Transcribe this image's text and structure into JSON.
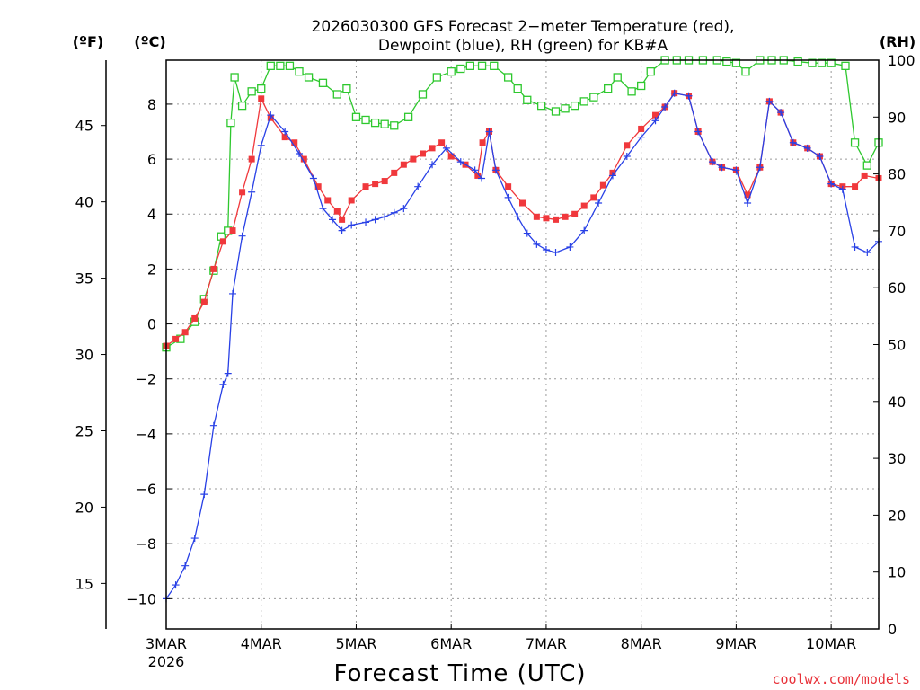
{
  "chart_data": {
    "type": "line",
    "title_line1": "2026030300 GFS Forecast 2−meter Temperature (red),",
    "title_line2": "Dewpoint (blue), RH (green) for KB#A",
    "xlabel": "Forecast Time (UTC)",
    "credit": "coolwx.com/models",
    "units": {
      "fahrenheit": "(ºF)",
      "celsius": "(ºC)",
      "rh": "(RH)"
    },
    "xlim_days": [
      0,
      7.5
    ],
    "x_ticks": [
      {
        "day": 0,
        "label": "3MAR",
        "label2": "2026"
      },
      {
        "day": 1,
        "label": "4MAR",
        "label2": ""
      },
      {
        "day": 2,
        "label": "5MAR",
        "label2": ""
      },
      {
        "day": 3,
        "label": "6MAR",
        "label2": ""
      },
      {
        "day": 4,
        "label": "7MAR",
        "label2": ""
      },
      {
        "day": 5,
        "label": "8MAR",
        "label2": ""
      },
      {
        "day": 6,
        "label": "9MAR",
        "label2": ""
      },
      {
        "day": 7,
        "label": "10MAR",
        "label2": ""
      }
    ],
    "celsius_axis": {
      "ylim": [
        -11.1,
        9.6
      ],
      "ticks": [
        {
          "v": -10,
          "label": "−10"
        },
        {
          "v": -8,
          "label": "−8"
        },
        {
          "v": -6,
          "label": "−6"
        },
        {
          "v": -4,
          "label": "−4"
        },
        {
          "v": -2,
          "label": "−2"
        },
        {
          "v": 0,
          "label": "0"
        },
        {
          "v": 2,
          "label": "2"
        },
        {
          "v": 4,
          "label": "4"
        },
        {
          "v": 6,
          "label": "6"
        },
        {
          "v": 8,
          "label": "8"
        }
      ]
    },
    "fahrenheit_axis": {
      "ticks": [
        {
          "v": 15,
          "label": "15"
        },
        {
          "v": 20,
          "label": "20"
        },
        {
          "v": 25,
          "label": "25"
        },
        {
          "v": 30,
          "label": "30"
        },
        {
          "v": 35,
          "label": "35"
        },
        {
          "v": 40,
          "label": "40"
        },
        {
          "v": 45,
          "label": "45"
        }
      ]
    },
    "rh_axis": {
      "ylim": [
        0,
        100
      ],
      "ticks": [
        {
          "v": 0,
          "label": "0"
        },
        {
          "v": 10,
          "label": "10"
        },
        {
          "v": 20,
          "label": "20"
        },
        {
          "v": 30,
          "label": "30"
        },
        {
          "v": 40,
          "label": "40"
        },
        {
          "v": 50,
          "label": "50"
        },
        {
          "v": 60,
          "label": "60"
        },
        {
          "v": 70,
          "label": "70"
        },
        {
          "v": 80,
          "label": "80"
        },
        {
          "v": 90,
          "label": "90"
        },
        {
          "v": 100,
          "label": "100"
        }
      ]
    },
    "series": [
      {
        "name": "Temperature",
        "unit": "C",
        "color": "#f0383c",
        "marker": "filled-square",
        "points": [
          [
            0.0,
            -0.8
          ],
          [
            0.2,
            -0.3
          ],
          [
            0.3,
            0.2
          ],
          [
            0.4,
            0.8
          ],
          [
            0.5,
            2.0
          ],
          [
            0.6,
            3.0
          ],
          [
            0.7,
            3.4
          ],
          [
            0.8,
            4.8
          ],
          [
            0.9,
            6.0
          ],
          [
            1.0,
            8.2
          ],
          [
            1.1,
            7.5
          ],
          [
            1.25,
            6.8
          ],
          [
            1.35,
            6.6
          ],
          [
            1.45,
            6.0
          ],
          [
            1.6,
            5.0
          ],
          [
            1.7,
            4.5
          ],
          [
            1.8,
            4.1
          ],
          [
            1.85,
            3.8
          ],
          [
            1.95,
            4.5
          ],
          [
            2.1,
            5.0
          ],
          [
            2.3,
            5.2
          ],
          [
            2.5,
            5.8
          ],
          [
            2.7,
            6.2
          ],
          [
            2.9,
            6.6
          ],
          [
            3.0,
            6.1
          ],
          [
            3.15,
            5.8
          ],
          [
            3.28,
            5.4
          ],
          [
            3.33,
            6.6
          ],
          [
            3.4,
            7.0
          ],
          [
            3.47,
            5.6
          ],
          [
            3.6,
            5.0
          ],
          [
            3.75,
            4.4
          ],
          [
            3.9,
            3.9
          ],
          [
            4.1,
            3.8
          ],
          [
            4.3,
            4.0
          ],
          [
            4.5,
            4.6
          ],
          [
            4.7,
            5.5
          ],
          [
            4.85,
            6.5
          ],
          [
            5.0,
            7.1
          ],
          [
            5.15,
            7.6
          ],
          [
            5.25,
            7.9
          ],
          [
            5.35,
            8.4
          ],
          [
            5.5,
            8.3
          ],
          [
            5.6,
            7.0
          ],
          [
            5.75,
            5.9
          ],
          [
            5.85,
            5.7
          ],
          [
            6.0,
            5.6
          ],
          [
            6.12,
            4.7
          ],
          [
            6.25,
            5.7
          ],
          [
            6.35,
            8.1
          ],
          [
            6.47,
            7.7
          ],
          [
            6.6,
            6.6
          ],
          [
            6.75,
            6.4
          ],
          [
            6.88,
            6.1
          ],
          [
            7.0,
            5.1
          ],
          [
            7.12,
            5.0
          ],
          [
            7.25,
            5.0
          ],
          [
            7.35,
            5.4
          ],
          [
            7.5,
            5.3
          ]
        ]
      },
      {
        "name": "Dewpoint",
        "unit": "C",
        "color": "#2840e6",
        "marker": "plus",
        "points": [
          [
            0.0,
            -10.0
          ],
          [
            0.1,
            -9.5
          ],
          [
            0.2,
            -8.8
          ],
          [
            0.3,
            -7.8
          ],
          [
            0.4,
            -6.2
          ],
          [
            0.5,
            -3.7
          ],
          [
            0.6,
            -2.2
          ],
          [
            0.65,
            -1.8
          ],
          [
            0.7,
            1.1
          ],
          [
            0.8,
            3.2
          ],
          [
            0.9,
            4.8
          ],
          [
            1.0,
            6.5
          ],
          [
            1.1,
            7.6
          ],
          [
            1.25,
            7.0
          ],
          [
            1.4,
            6.2
          ],
          [
            1.55,
            5.3
          ],
          [
            1.65,
            4.2
          ],
          [
            1.75,
            3.8
          ],
          [
            1.85,
            3.4
          ],
          [
            1.95,
            3.6
          ],
          [
            2.1,
            3.7
          ],
          [
            2.3,
            3.9
          ],
          [
            2.5,
            4.2
          ],
          [
            2.65,
            5.0
          ],
          [
            2.8,
            5.8
          ],
          [
            2.95,
            6.4
          ],
          [
            3.1,
            5.9
          ],
          [
            3.25,
            5.6
          ],
          [
            3.32,
            5.3
          ],
          [
            3.4,
            7.0
          ],
          [
            3.47,
            5.6
          ],
          [
            3.6,
            4.6
          ],
          [
            3.7,
            3.9
          ],
          [
            3.8,
            3.3
          ],
          [
            3.9,
            2.9
          ],
          [
            4.0,
            2.7
          ],
          [
            4.1,
            2.6
          ],
          [
            4.25,
            2.8
          ],
          [
            4.4,
            3.4
          ],
          [
            4.55,
            4.4
          ],
          [
            4.7,
            5.4
          ],
          [
            4.85,
            6.1
          ],
          [
            5.0,
            6.8
          ],
          [
            5.15,
            7.4
          ],
          [
            5.25,
            7.9
          ],
          [
            5.35,
            8.4
          ],
          [
            5.5,
            8.3
          ],
          [
            5.6,
            7.0
          ],
          [
            5.75,
            5.9
          ],
          [
            5.85,
            5.7
          ],
          [
            6.0,
            5.6
          ],
          [
            6.12,
            4.4
          ],
          [
            6.25,
            5.7
          ],
          [
            6.35,
            8.1
          ],
          [
            6.47,
            7.7
          ],
          [
            6.6,
            6.6
          ],
          [
            6.75,
            6.4
          ],
          [
            6.88,
            6.1
          ],
          [
            7.0,
            5.1
          ],
          [
            7.12,
            4.9
          ],
          [
            7.25,
            2.8
          ],
          [
            7.38,
            2.6
          ],
          [
            7.5,
            3.0
          ]
        ]
      },
      {
        "name": "RH",
        "unit": "%",
        "color": "#2ec82e",
        "marker": "open-square",
        "points": [
          [
            0.0,
            49.5
          ],
          [
            0.15,
            51.0
          ],
          [
            0.3,
            54.0
          ],
          [
            0.4,
            58.0
          ],
          [
            0.5,
            63.0
          ],
          [
            0.58,
            69.0
          ],
          [
            0.65,
            70.0
          ],
          [
            0.68,
            89.0
          ],
          [
            0.72,
            97.0
          ],
          [
            0.8,
            92.0
          ],
          [
            0.9,
            94.5
          ],
          [
            1.0,
            95.0
          ],
          [
            1.1,
            99.0
          ],
          [
            1.3,
            99.0
          ],
          [
            1.5,
            97.0
          ],
          [
            1.65,
            96.0
          ],
          [
            1.8,
            94.0
          ],
          [
            1.9,
            95.0
          ],
          [
            2.0,
            90.0
          ],
          [
            2.2,
            89.0
          ],
          [
            2.4,
            88.5
          ],
          [
            2.55,
            90.0
          ],
          [
            2.7,
            94.0
          ],
          [
            2.85,
            97.0
          ],
          [
            3.0,
            98.0
          ],
          [
            3.2,
            99.0
          ],
          [
            3.45,
            99.0
          ],
          [
            3.6,
            97.0
          ],
          [
            3.8,
            93.0
          ],
          [
            3.95,
            92.0
          ],
          [
            4.1,
            91.0
          ],
          [
            4.3,
            92.0
          ],
          [
            4.5,
            93.5
          ],
          [
            4.65,
            95.0
          ],
          [
            4.75,
            97.0
          ],
          [
            4.9,
            94.5
          ],
          [
            5.0,
            95.5
          ],
          [
            5.1,
            98.0
          ],
          [
            5.25,
            100.0
          ],
          [
            5.5,
            100.0
          ],
          [
            5.8,
            100.0
          ],
          [
            6.0,
            99.5
          ],
          [
            6.1,
            98.0
          ],
          [
            6.25,
            100.0
          ],
          [
            6.5,
            100.0
          ],
          [
            6.8,
            99.5
          ],
          [
            7.0,
            99.5
          ],
          [
            7.15,
            99.0
          ],
          [
            7.25,
            85.5
          ],
          [
            7.38,
            81.5
          ],
          [
            7.5,
            85.5
          ]
        ]
      }
    ]
  }
}
